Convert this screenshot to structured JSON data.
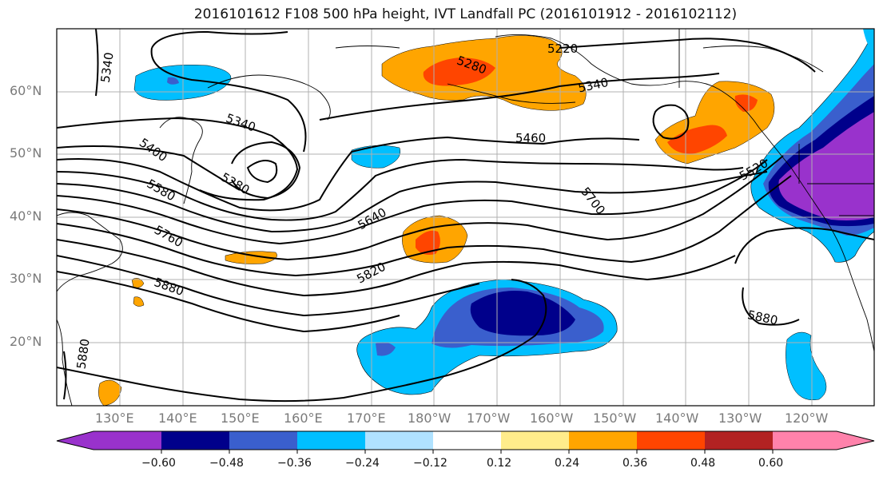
{
  "title": "2016101612 F108 500 hPa height, IVT Landfall PC (2016101912 - 2016102112)",
  "lat_labels": [
    "60°N",
    "50°N",
    "40°N",
    "30°N",
    "20°N"
  ],
  "lon_labels": [
    "130°E",
    "140°E",
    "150°E",
    "160°E",
    "170°E",
    "180°W",
    "170°W",
    "160°W",
    "150°W",
    "140°W",
    "130°W",
    "120°W"
  ],
  "contour_labels": [
    "5340",
    "5220",
    "5280",
    "5340",
    "5340",
    "5400",
    "5280",
    "5460",
    "5520",
    "5580",
    "5640",
    "5700",
    "5760",
    "5820",
    "5880",
    "5880",
    "5880"
  ],
  "colorbar": {
    "ticks": [
      "−0.60",
      "−0.48",
      "−0.36",
      "−0.24",
      "−0.12",
      "0.12",
      "0.24",
      "0.36",
      "0.48",
      "0.60"
    ],
    "colors": [
      "#9932cc",
      "#00008b",
      "#3a5fcd",
      "#00bfff",
      "#b0e2ff",
      "#ffffff",
      "#ffec8b",
      "#ffa500",
      "#ff4500",
      "#b22222",
      "#ff82ab"
    ]
  }
}
